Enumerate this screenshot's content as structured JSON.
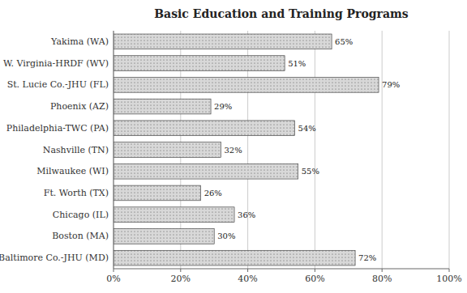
{
  "chart_data": {
    "type": "bar",
    "orientation": "horizontal",
    "title": "Basic Education and Training Programs",
    "categories": [
      "Baltimore Co.-JHU (MD)",
      "Boston (MA)",
      "Chicago (IL)",
      "Ft. Worth (TX)",
      "Milwaukee (WI)",
      "Nashville (TN)",
      "Philadelphia-TWC (PA)",
      "Phoenix (AZ)",
      "St. Lucie Co.-JHU (FL)",
      "W. Virginia-HRDF (WV)",
      "Yakima (WA)"
    ],
    "values": [
      72,
      30,
      36,
      26,
      55,
      32,
      54,
      29,
      79,
      51,
      65
    ],
    "value_labels": [
      "72%",
      "30%",
      "36%",
      "26%",
      "55%",
      "32%",
      "54%",
      "29%",
      "79%",
      "51%",
      "65%"
    ],
    "color": "#d8d8d8",
    "xlim": [
      0,
      100
    ],
    "xticks": [
      {
        "value": 0,
        "label": "0%"
      },
      {
        "value": 20,
        "label": "20%"
      },
      {
        "value": 40,
        "label": "40%"
      },
      {
        "value": 60,
        "label": "60%"
      },
      {
        "value": 80,
        "label": "80%"
      },
      {
        "value": 100,
        "label": "100%"
      }
    ],
    "grid": true,
    "data_labels": true
  }
}
